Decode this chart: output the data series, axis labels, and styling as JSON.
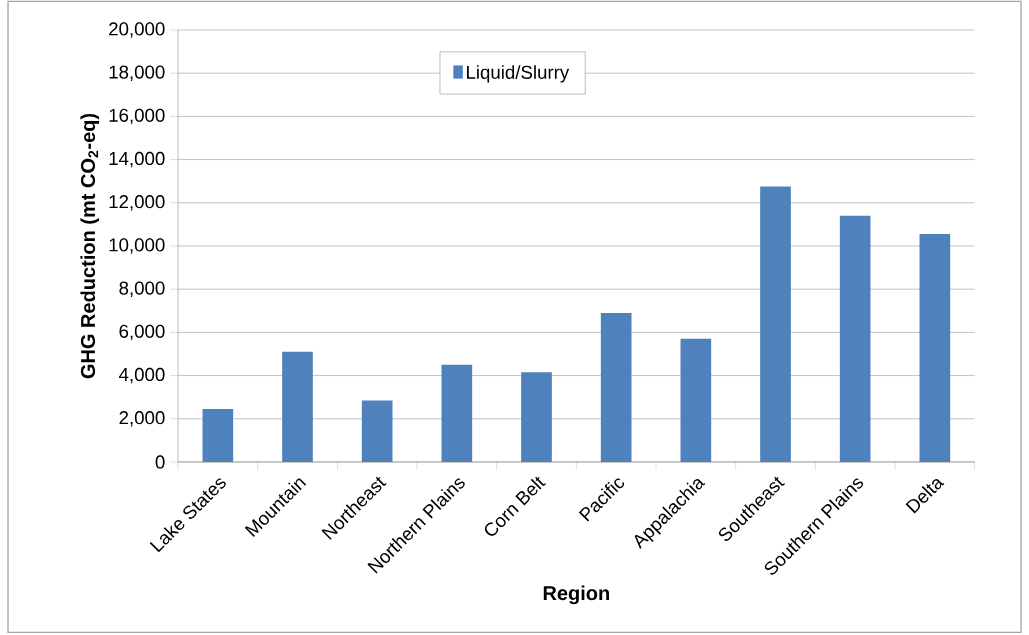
{
  "chart_data": {
    "type": "bar",
    "xlabel": "Region",
    "ylabel": "GHG Reduction (mt CO$_{2}$-eq)",
    "categories": [
      "Lake States",
      "Mountain",
      "Northeast",
      "Northern Plains",
      "Corn Belt",
      "Pacific",
      "Appalachia",
      "Southeast",
      "Southern Plains",
      "Delta"
    ],
    "series": [
      {
        "name": "Liquid/Slurry",
        "color": "#4f81bd",
        "values": [
          2450,
          5100,
          2850,
          4500,
          4150,
          6900,
          5700,
          12750,
          11400,
          10550
        ]
      }
    ],
    "ylim": [
      0,
      20000
    ],
    "yticks": [
      0,
      {
        "value": 2000,
        "label": "2,000"
      },
      {
        "value": 4000,
        "label": "4,000"
      },
      {
        "value": 6000,
        "label": "6,000"
      },
      {
        "value": 8000,
        "label": "8,000"
      },
      {
        "value": 10000,
        "label": "10,000"
      },
      {
        "value": 12000,
        "label": "12,000"
      },
      {
        "value": 14000,
        "label": "14,000"
      },
      {
        "value": 16000,
        "label": "16,000"
      },
      {
        "value": 18000,
        "label": "18,000"
      },
      {
        "value": 20000,
        "label": "20,000"
      }
    ],
    "grid": "y",
    "legend": "top"
  }
}
